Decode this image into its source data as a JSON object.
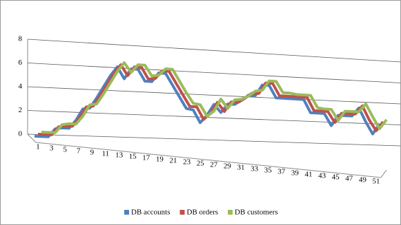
{
  "chart_data": {
    "type": "line",
    "categories": [
      1,
      null,
      3,
      null,
      5,
      null,
      7,
      null,
      9,
      null,
      11,
      null,
      13,
      null,
      15,
      null,
      17,
      null,
      19,
      null,
      21,
      null,
      23,
      null,
      25,
      null,
      27,
      null,
      29,
      null,
      31,
      null,
      33,
      null,
      35,
      null,
      37,
      null,
      39,
      null,
      41,
      null,
      43,
      null,
      45,
      null,
      47,
      null,
      49,
      null,
      51
    ],
    "series": [
      {
        "name": "DB accounts",
        "color": "#4f81bd",
        "values": [
          0,
          0,
          0,
          0.7,
          0.8,
          0.8,
          1.5,
          2.5,
          2.6,
          3.5,
          4.5,
          5.5,
          6.3,
          5.3,
          6.2,
          6.2,
          5.2,
          5.2,
          6,
          6,
          5,
          4,
          3,
          2.9,
          1.8,
          2.5,
          3.5,
          2.8,
          3.6,
          3.6,
          4,
          4.5,
          4.5,
          5.5,
          5.5,
          4.4,
          4.4,
          4.4,
          4.4,
          4.4,
          3.2,
          3.2,
          3.2,
          2.1,
          3.1,
          3.1,
          3.1,
          3.9,
          2.6,
          1.5,
          2.5
        ]
      },
      {
        "name": "DB orders",
        "color": "#c0504d",
        "values": [
          0,
          0,
          0,
          0.7,
          0.8,
          0.8,
          1.5,
          2.5,
          2.6,
          3.5,
          4.5,
          5.5,
          6.3,
          5.4,
          6.2,
          6.2,
          5.2,
          5.3,
          6,
          6,
          5,
          4,
          3,
          3,
          1.9,
          2.5,
          3.5,
          2.7,
          3.6,
          3.6,
          4,
          4.5,
          4.5,
          5.5,
          5.5,
          4.4,
          4.4,
          4.4,
          4.4,
          4.4,
          3.2,
          3.2,
          3.2,
          2.2,
          3.1,
          3.1,
          3.1,
          3.9,
          2.6,
          1.6,
          2.5
        ]
      },
      {
        "name": "DB customers",
        "color": "#9bbb59",
        "values": [
          0,
          0,
          0,
          0.7,
          0.8,
          0.8,
          1.5,
          2.5,
          2.6,
          3.5,
          4.5,
          5.5,
          6.3,
          5.5,
          6.2,
          6.2,
          5.3,
          5.4,
          6,
          6,
          5,
          4,
          3.1,
          3,
          2,
          2.5,
          3.6,
          2.8,
          3.6,
          3.7,
          4,
          4.5,
          4.6,
          5.5,
          5.5,
          4.5,
          4.5,
          4.4,
          4.4,
          4.4,
          3.3,
          3.2,
          3.2,
          2.2,
          3.1,
          3.1,
          3.1,
          3.9,
          2.7,
          1.6,
          2.5
        ]
      }
    ],
    "ylim": [
      0,
      8
    ],
    "yticks": [
      0,
      2,
      4,
      6,
      8
    ],
    "grid": true,
    "legend": "bottom"
  }
}
